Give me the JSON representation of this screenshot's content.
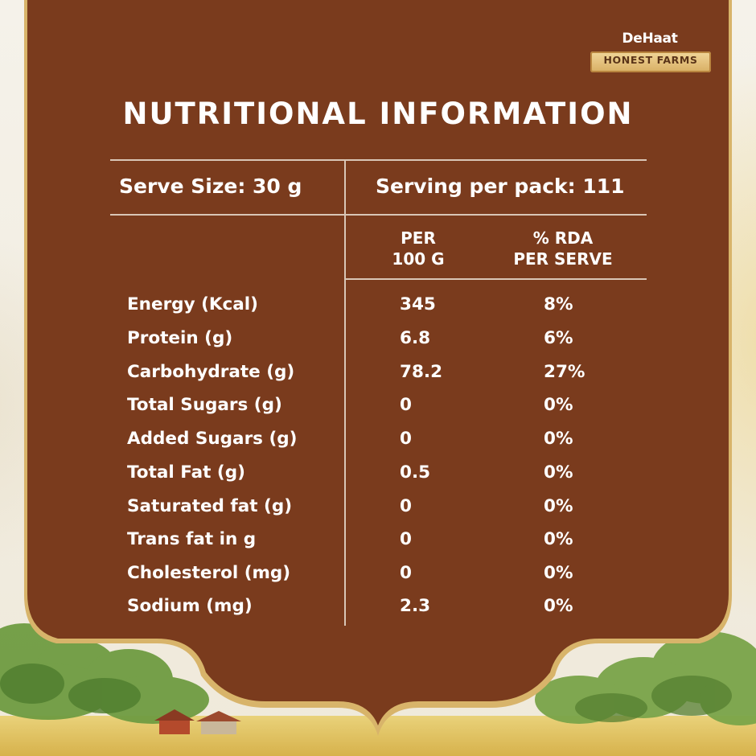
{
  "brand": {
    "name": "DeHaat",
    "tagline": "HONEST FARMS"
  },
  "title": "NUTRITIONAL INFORMATION",
  "serving": {
    "size_label": "Serve Size: 30 g",
    "per_pack_label": "Serving per pack: 111"
  },
  "columns": {
    "per100_line1": "PER",
    "per100_line2": "100 G",
    "rda_line1": "% RDA",
    "rda_line2": "PER SERVE"
  },
  "rows": [
    {
      "label": "Energy (Kcal)",
      "per100": "345",
      "rda": "8%"
    },
    {
      "label": "Protein (g)",
      "per100": "6.8",
      "rda": "6%"
    },
    {
      "label": "Carbohydrate (g)",
      "per100": "78.2",
      "rda": "27%"
    },
    {
      "label": "Total Sugars (g)",
      "per100": "0",
      "rda": "0%"
    },
    {
      "label": "Added Sugars (g)",
      "per100": "0",
      "rda": "0%"
    },
    {
      "label": "Total Fat (g)",
      "per100": "0.5",
      "rda": "0%"
    },
    {
      "label": "Saturated fat (g)",
      "per100": "0",
      "rda": "0%"
    },
    {
      "label": "Trans fat in g",
      "per100": "0",
      "rda": "0%"
    },
    {
      "label": "Cholesterol (mg)",
      "per100": "0",
      "rda": "0%"
    },
    {
      "label": "Sodium (mg)",
      "per100": "2.3",
      "rda": "0%"
    }
  ],
  "colors": {
    "panel": "#7a3b1d",
    "gold_border": "#d8b46a",
    "text": "#ffffff",
    "rule": "#d9c6b6"
  }
}
